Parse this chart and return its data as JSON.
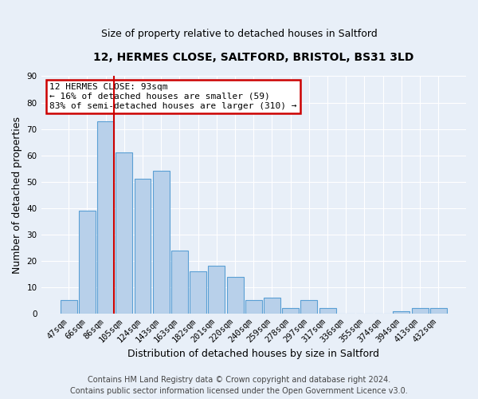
{
  "title": "12, HERMES CLOSE, SALTFORD, BRISTOL, BS31 3LD",
  "subtitle": "Size of property relative to detached houses in Saltford",
  "xlabel": "Distribution of detached houses by size in Saltford",
  "ylabel": "Number of detached properties",
  "bar_labels": [
    "47sqm",
    "66sqm",
    "86sqm",
    "105sqm",
    "124sqm",
    "143sqm",
    "163sqm",
    "182sqm",
    "201sqm",
    "220sqm",
    "240sqm",
    "259sqm",
    "278sqm",
    "297sqm",
    "317sqm",
    "336sqm",
    "355sqm",
    "374sqm",
    "394sqm",
    "413sqm",
    "432sqm"
  ],
  "bar_values": [
    5,
    39,
    73,
    61,
    51,
    54,
    24,
    16,
    18,
    14,
    5,
    6,
    2,
    5,
    2,
    0,
    0,
    0,
    1,
    2,
    2
  ],
  "bar_color": "#b8d0ea",
  "bar_edge_color": "#5a9fd4",
  "ylim": [
    0,
    90
  ],
  "yticks": [
    0,
    10,
    20,
    30,
    40,
    50,
    60,
    70,
    80,
    90
  ],
  "vline_x_index": 2,
  "vline_color": "#cc0000",
  "annotation_title": "12 HERMES CLOSE: 93sqm",
  "annotation_line1": "← 16% of detached houses are smaller (59)",
  "annotation_line2": "83% of semi-detached houses are larger (310) →",
  "annotation_box_color": "#ffffff",
  "annotation_box_edge": "#cc0000",
  "footer1": "Contains HM Land Registry data © Crown copyright and database right 2024.",
  "footer2": "Contains public sector information licensed under the Open Government Licence v3.0.",
  "background_color": "#e8eff8",
  "plot_background": "#e8eff8",
  "grid_color": "#ffffff",
  "title_fontsize": 10,
  "subtitle_fontsize": 9,
  "xlabel_fontsize": 9,
  "ylabel_fontsize": 9,
  "tick_fontsize": 7.5,
  "annotation_fontsize": 8,
  "footer_fontsize": 7
}
